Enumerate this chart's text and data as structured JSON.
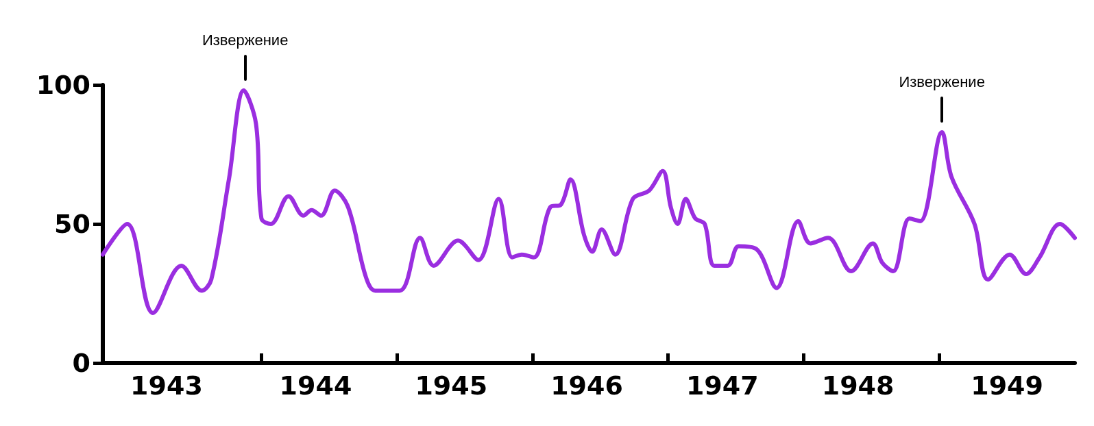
{
  "chart_data": {
    "type": "line",
    "x": [
      1942.83,
      1943.01,
      1943.2,
      1943.41,
      1943.56,
      1943.63,
      1943.76,
      1943.87,
      1943.96,
      1944.0,
      1944.07,
      1944.2,
      1944.31,
      1944.37,
      1944.44,
      1944.54,
      1944.64,
      1944.77,
      1944.84,
      1945.02,
      1945.17,
      1945.27,
      1945.45,
      1945.6,
      1945.75,
      1945.85,
      1945.92,
      1946.01,
      1946.13,
      1946.21,
      1946.28,
      1946.38,
      1946.44,
      1946.51,
      1946.61,
      1946.74,
      1946.86,
      1946.96,
      1947.02,
      1947.07,
      1947.13,
      1947.2,
      1947.27,
      1947.34,
      1947.44,
      1947.52,
      1947.65,
      1947.8,
      1947.96,
      1948.05,
      1948.18,
      1948.35,
      1948.51,
      1948.58,
      1948.66,
      1948.78,
      1948.86,
      1949.02,
      1949.09,
      1949.26,
      1949.36,
      1949.52,
      1949.64,
      1949.74,
      1949.89,
      1950.0
    ],
    "series": [
      {
        "color": "#9a2ee0",
        "values": [
          39,
          50,
          18,
          35,
          26,
          30,
          66,
          98,
          86,
          52,
          50,
          60,
          53,
          55,
          53,
          62,
          56,
          31,
          26,
          26,
          45,
          35,
          44,
          37,
          59,
          38,
          39,
          38,
          56,
          57,
          66,
          46,
          40,
          48,
          39,
          59,
          62,
          69,
          56,
          50,
          59,
          52,
          50,
          35,
          35,
          42,
          41,
          27,
          51,
          43,
          45,
          33,
          43,
          36,
          33,
          52,
          51,
          83,
          67,
          50,
          30,
          39,
          32,
          38,
          50,
          45
        ]
      }
    ],
    "xlim": [
      1942.83,
      1950.0
    ],
    "xticks": [
      {
        "value": 1943.3,
        "label": "1943"
      },
      {
        "value": 1944,
        "label": null
      },
      {
        "value": 1944.4,
        "label": "1944"
      },
      {
        "value": 1945,
        "label": null
      },
      {
        "value": 1945.4,
        "label": "1945"
      },
      {
        "value": 1946,
        "label": null
      },
      {
        "value": 1946.4,
        "label": "1946"
      },
      {
        "value": 1947,
        "label": null
      },
      {
        "value": 1947.4,
        "label": "1947"
      },
      {
        "value": 1948,
        "label": null
      },
      {
        "value": 1948.4,
        "label": "1948"
      },
      {
        "value": 1949,
        "label": null
      },
      {
        "value": 1949.5,
        "label": "1949"
      }
    ],
    "ylim": [
      0,
      100
    ],
    "yticks": [
      0,
      50,
      100
    ],
    "grid": false,
    "marker": "none",
    "line_style": "solid",
    "annotations": [
      {
        "text": "Извержение",
        "x": 1943.88,
        "y": 98
      },
      {
        "text": "Извержение",
        "x": 1949.02,
        "y": 83
      }
    ]
  }
}
